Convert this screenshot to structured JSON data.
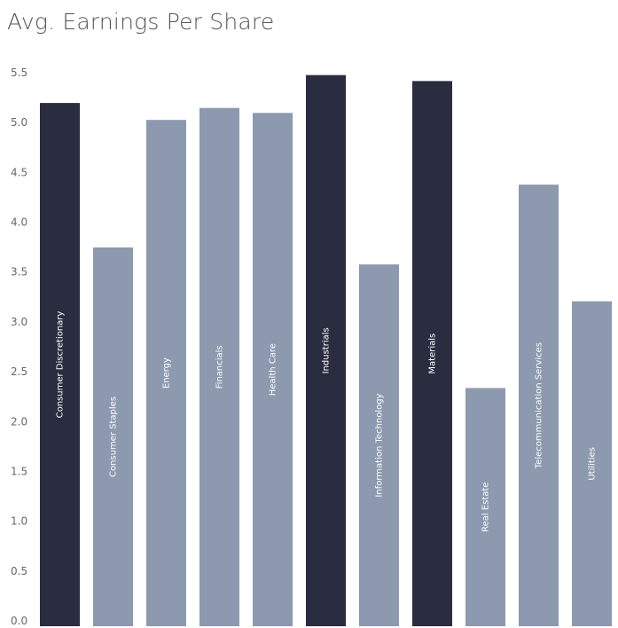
{
  "title": "Avg. Earnings Per Share",
  "chart_data": {
    "type": "bar",
    "title": "Avg. Earnings Per Share",
    "xlabel": "",
    "ylabel": "",
    "ylim": [
      0,
      5.5
    ],
    "yticks": [
      "0.0",
      "0.5",
      "1.0",
      "1.5",
      "2.0",
      "2.5",
      "3.0",
      "3.5",
      "4.0",
      "4.5",
      "5.0",
      "5.5"
    ],
    "grid": false,
    "categories": [
      "Consumer Discretionary",
      "Consumer Staples",
      "Energy",
      "Financials",
      "Health Care",
      "Industrials",
      "Information Technology",
      "Materials",
      "Real Estate",
      "Telecommunication Services",
      "Utilities"
    ],
    "values": [
      5.25,
      3.8,
      5.08,
      5.2,
      5.15,
      5.53,
      3.63,
      5.47,
      2.39,
      4.43,
      3.26
    ],
    "highlighted": [
      "Consumer Discretionary",
      "Industrials",
      "Materials"
    ],
    "colors": {
      "highlight": "#2a2d3f",
      "default": "#8c99ae"
    }
  }
}
